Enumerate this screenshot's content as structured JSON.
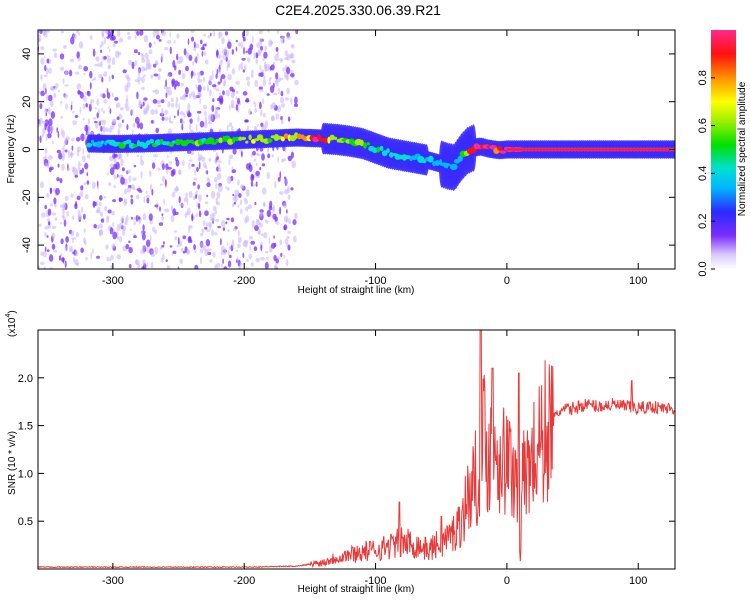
{
  "title": "C2E4.2025.330.06.39.R21",
  "chart_data": [
    {
      "type": "heatmap",
      "xlabel": "Height of straight line (km)",
      "ylabel": "Frequency (Hz)",
      "xlim": [
        -357,
        128
      ],
      "ylim": [
        -50,
        50
      ],
      "xticks": [
        -300,
        -200,
        -100,
        0,
        100
      ],
      "xtick_labels": [
        "-300",
        "-200",
        "-100",
        "0",
        "100"
      ],
      "yticks": [
        -40,
        -20,
        0,
        20,
        40
      ],
      "ytick_labels": [
        "-40",
        "-20",
        "0",
        "20",
        "40"
      ],
      "colorbar": {
        "label": "Normalized spectral amplitude",
        "range": [
          0,
          1
        ],
        "ticks": [
          0.0,
          0.2,
          0.4,
          0.6,
          0.8
        ],
        "tick_labels": [
          "0.0",
          "0.2",
          "0.4",
          "0.6",
          "0.8"
        ]
      },
      "noise_region_x": [
        -357,
        -160
      ],
      "ridge": {
        "x": [
          -318,
          -300,
          -280,
          -260,
          -240,
          -220,
          -200,
          -180,
          -160,
          -150,
          -140,
          -130,
          -120,
          -110,
          -100,
          -90,
          -80,
          -70,
          -60,
          -50,
          -45,
          -40,
          -35,
          -30,
          -25,
          -20,
          -15,
          -10,
          -5,
          0,
          10,
          30,
          60,
          90,
          128
        ],
        "freq": [
          2.5,
          2.3,
          2.5,
          2.8,
          3.2,
          3.6,
          4.0,
          4.5,
          5.0,
          4.8,
          4.6,
          4.2,
          3.5,
          2.5,
          0.5,
          -1.5,
          -2.5,
          -3.5,
          -4.5,
          -6.0,
          -7.0,
          -7.5,
          -3.5,
          -0.5,
          0.8,
          1.2,
          0.5,
          0.0,
          -0.3,
          0.0,
          0.0,
          0.0,
          0.0,
          0.0,
          0.0
        ],
        "amplitude": [
          0.35,
          0.4,
          0.42,
          0.45,
          0.5,
          0.52,
          0.55,
          0.6,
          0.7,
          0.8,
          0.85,
          0.65,
          0.55,
          0.5,
          0.45,
          0.4,
          0.4,
          0.35,
          0.35,
          0.3,
          0.25,
          0.3,
          0.35,
          0.7,
          0.9,
          0.95,
          0.95,
          0.9,
          0.85,
          0.95,
          1.0,
          1.0,
          1.0,
          1.0,
          1.0
        ]
      }
    },
    {
      "type": "line",
      "xlabel": "Height of straight line (km)",
      "ylabel": "SNR (10 * v/v)",
      "y_multiplier": "(x10",
      "y_multiplier_exp": "4",
      "y_multiplier_close": ")",
      "xlim": [
        -357,
        128
      ],
      "ylim": [
        0,
        2.5
      ],
      "xticks": [
        -300,
        -200,
        -100,
        0,
        100
      ],
      "xtick_labels": [
        "-300",
        "-200",
        "-100",
        "0",
        "100"
      ],
      "yticks": [
        0.5,
        1.0,
        1.5,
        2.0
      ],
      "ytick_labels": [
        "0.5",
        "1.0",
        "1.5",
        "2.0"
      ],
      "series": [
        {
          "name": "SNR",
          "color": "#e83a3a",
          "x": [
            -357,
            -300,
            -250,
            -200,
            -160,
            -140,
            -130,
            -120,
            -110,
            -100,
            -90,
            -80,
            -70,
            -60,
            -50,
            -40,
            -35,
            -30,
            -25,
            -20,
            -18,
            -15,
            -10,
            -5,
            0,
            5,
            9,
            10,
            12,
            15,
            20,
            25,
            30,
            35,
            40,
            50,
            60,
            70,
            80,
            90,
            100,
            110,
            120,
            128
          ],
          "y": [
            0.02,
            0.02,
            0.02,
            0.02,
            0.03,
            0.07,
            0.12,
            0.15,
            0.18,
            0.2,
            0.24,
            0.28,
            0.26,
            0.2,
            0.28,
            0.38,
            0.5,
            0.75,
            0.9,
            1.1,
            1.4,
            1.2,
            1.3,
            1.2,
            1.1,
            1.05,
            0.8,
            0.05,
            0.9,
            1.05,
            1.15,
            1.3,
            1.45,
            1.55,
            1.65,
            1.68,
            1.72,
            1.7,
            1.72,
            1.7,
            1.68,
            1.7,
            1.68,
            1.68
          ],
          "spikes": [
            {
              "x": -82,
              "y": 0.7
            },
            {
              "x": -50,
              "y": 0.55
            },
            {
              "x": -20,
              "y": 2.5
            },
            {
              "x": -11,
              "y": 2.1
            },
            {
              "x": 9,
              "y": 2.05
            },
            {
              "x": 95,
              "y": 1.97
            }
          ]
        }
      ]
    }
  ]
}
